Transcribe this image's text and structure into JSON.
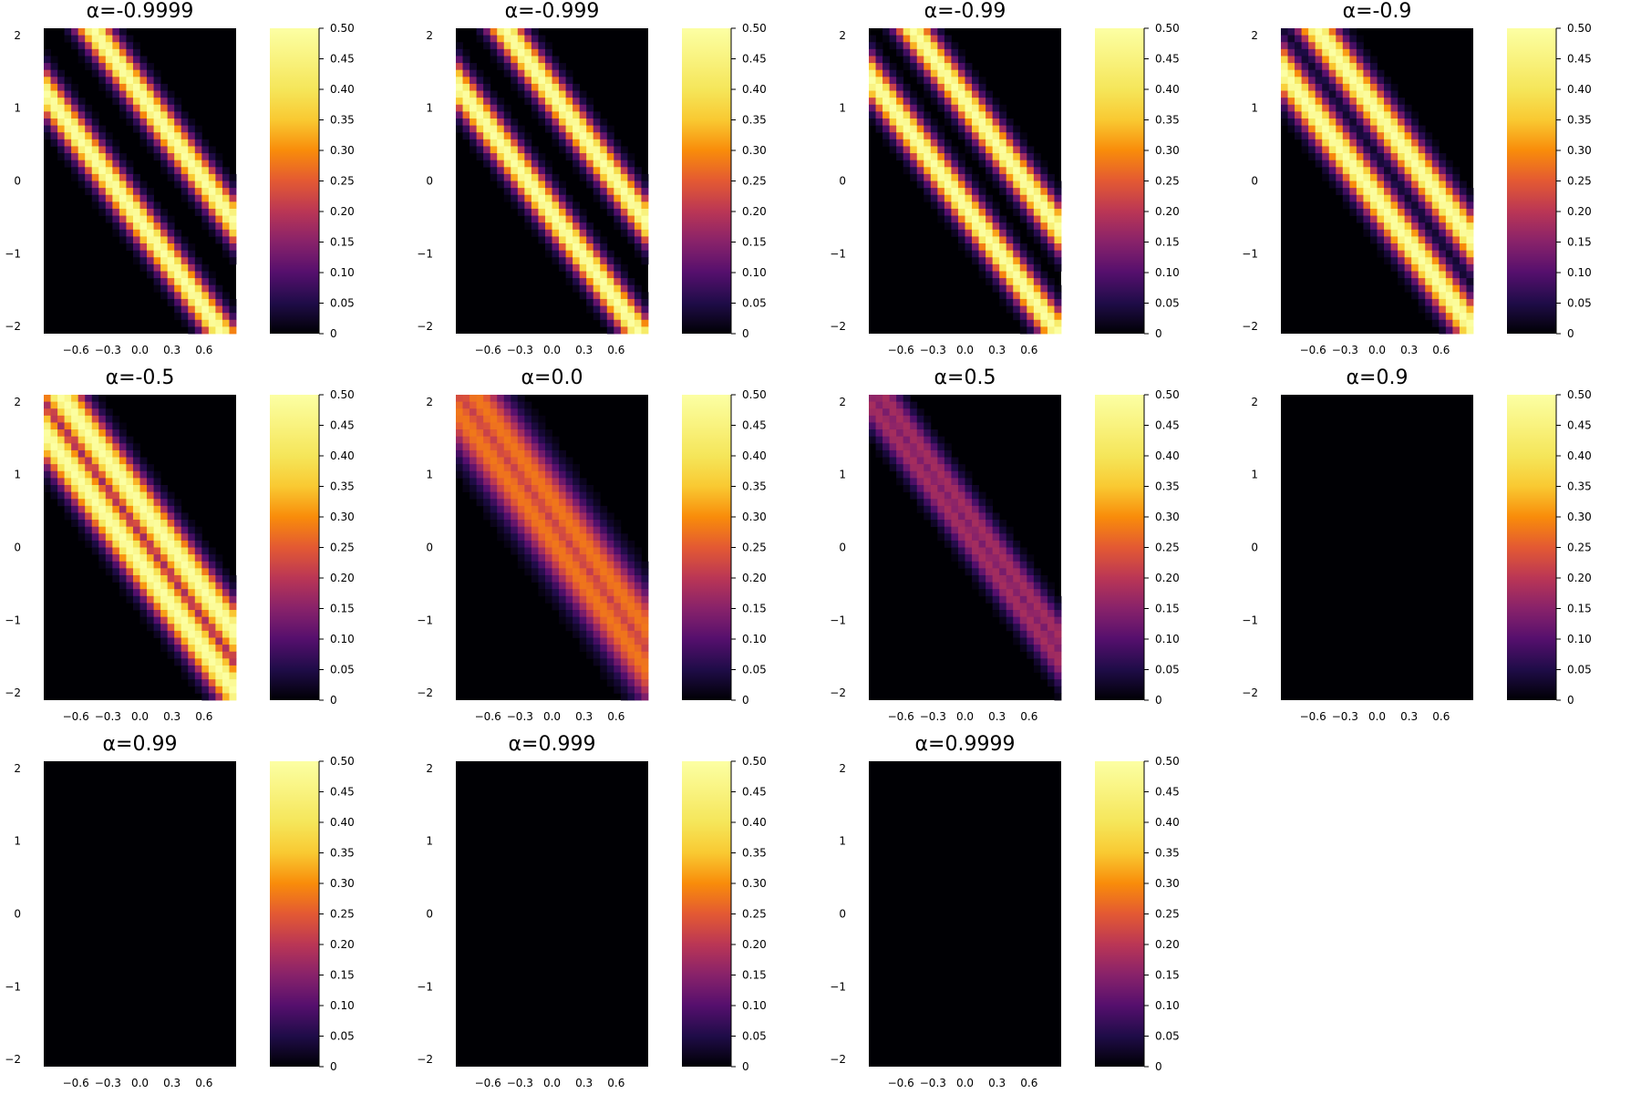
{
  "chart_data": {
    "type": "heatmap",
    "layout": "3x4 grid",
    "colormap": "inferno",
    "grid": false,
    "legend": "colorbar right of each panel",
    "xlim": [
      -0.9,
      0.9
    ],
    "ylim": [
      -2.1,
      2.1
    ],
    "x_ticks": [
      "−0.6",
      "−0.3",
      "0.0",
      "0.3",
      "0.6"
    ],
    "y_ticks": [
      "2",
      "1",
      "0",
      "−1",
      "−2"
    ],
    "colorbar": {
      "range": [
        0,
        0.5
      ],
      "ticks": [
        "0.50",
        "0.45",
        "0.40",
        "0.35",
        "0.30",
        "0.25",
        "0.20",
        "0.15",
        "0.10",
        "0.05",
        "0"
      ]
    },
    "band_slope": -2.0,
    "panels": [
      {
        "title": "α=-0.9999",
        "alpha": -0.9999,
        "band_centers_at_x0": [
          -0.55,
          1.2
        ],
        "peak": 0.5,
        "band_width": 0.1
      },
      {
        "title": "α=-0.999",
        "alpha": -0.999,
        "band_centers_at_x0": [
          -0.45,
          1.2
        ],
        "peak": 0.5,
        "band_width": 0.1
      },
      {
        "title": "α=-0.99",
        "alpha": -0.99,
        "band_centers_at_x0": [
          -0.35,
          1.1
        ],
        "peak": 0.5,
        "band_width": 0.1
      },
      {
        "title": "α=-0.9",
        "alpha": -0.9,
        "band_centers_at_x0": [
          -0.25,
          0.95
        ],
        "peak": 0.5,
        "band_width": 0.11
      },
      {
        "title": "α=-0.5",
        "alpha": -0.5,
        "band_centers_at_x0": [
          -0.2,
          0.6
        ],
        "peak": 0.5,
        "band_width": 0.12
      },
      {
        "title": "α=0.0",
        "alpha": 0.0,
        "band_centers_at_x0": [
          0.1,
          0.65
        ],
        "peak": 0.28,
        "band_width": 0.16
      },
      {
        "title": "α=0.5",
        "alpha": 0.5,
        "band_centers_at_x0": [
          0.2,
          0.55
        ],
        "peak": 0.18,
        "band_width": 0.1
      },
      {
        "title": "α=0.9",
        "alpha": 0.9,
        "band_centers_at_x0": [],
        "peak": 0,
        "band_width": 0.1
      },
      {
        "title": "α=0.99",
        "alpha": 0.99,
        "band_centers_at_x0": [],
        "peak": 0,
        "band_width": 0.1
      },
      {
        "title": "α=0.999",
        "alpha": 0.999,
        "band_centers_at_x0": [],
        "peak": 0,
        "band_width": 0.1
      },
      {
        "title": "α=0.9999",
        "alpha": 0.9999,
        "band_centers_at_x0": [],
        "peak": 0,
        "band_width": 0.1
      }
    ]
  }
}
